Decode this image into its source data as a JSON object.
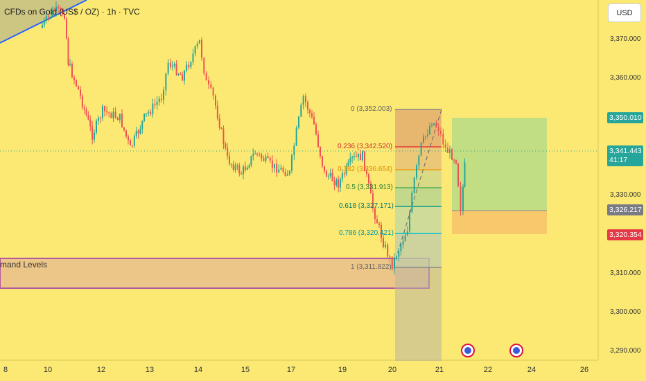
{
  "header": {
    "title": "CFDs on Gold (US$ / OZ) · 1h · TVC",
    "currency": "USD"
  },
  "y_axis_ticks": [
    "3,370.000",
    "3,360.000",
    "3,350.000",
    "3,340.000",
    "3,330.000",
    "3,320.000",
    "3,310.000",
    "3,300.000",
    "3,290.000"
  ],
  "x_axis_ticks": [
    "8",
    "10",
    "12",
    "13",
    "14",
    "15",
    "17",
    "19",
    "20",
    "21",
    "22",
    "24",
    "26"
  ],
  "price_tags": {
    "target": "3,350.010",
    "current_price": "3,341.443",
    "countdown": "41:17",
    "entry": "3,326.217",
    "stop": "3,320.354"
  },
  "fib_levels": [
    "0 (3,352.003)",
    "0.236 (3,342.520)",
    "0.382 (3,336.654)",
    "0.5 (3,331.913)",
    "0.618 (3,327.171)",
    "0.786 (3,320.421)",
    "1 (3,311.822)"
  ],
  "demand_label": "mand Levels",
  "colors": {
    "background": "#fbe973",
    "bull": "#26a69a",
    "bear": "#ef5350",
    "target_zone": "#a8d88a",
    "stop_zone": "#f6c26b",
    "demand_zone": "#e8b98f"
  }
}
